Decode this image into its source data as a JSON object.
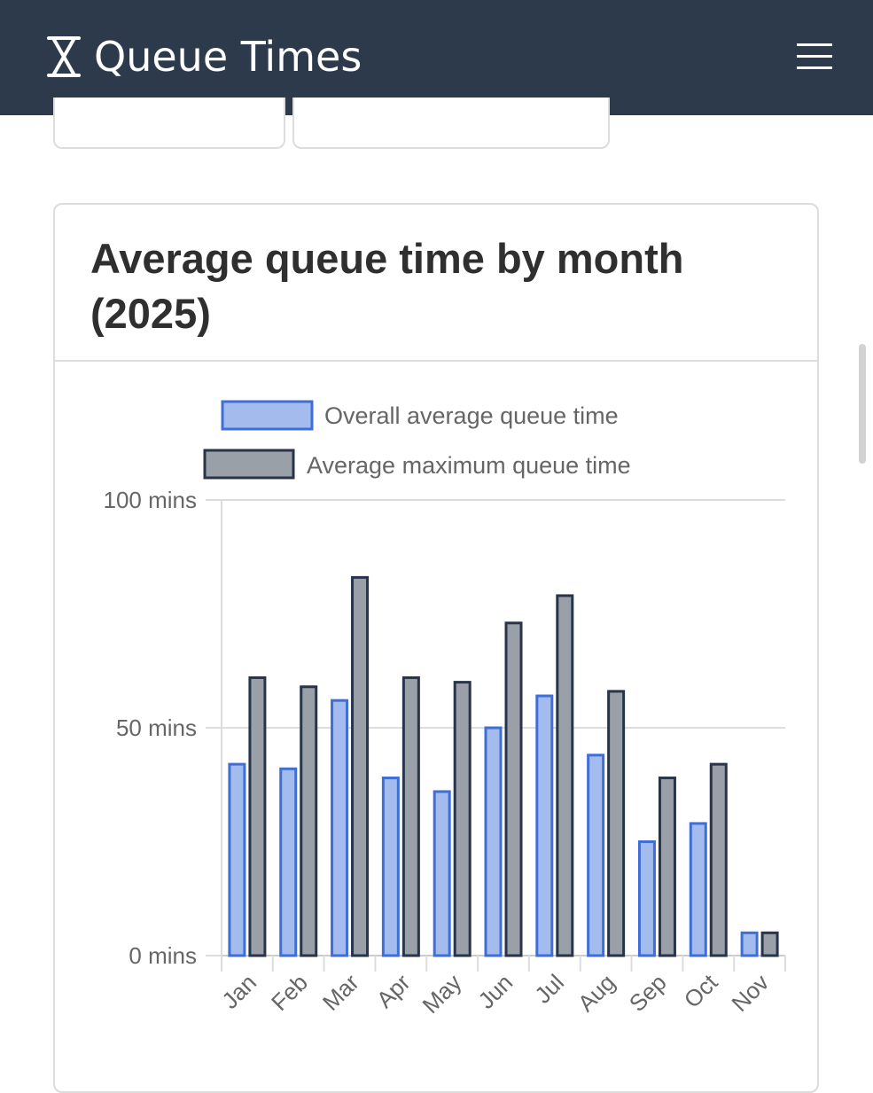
{
  "header": {
    "title": "Queue Times",
    "brand_icon": "hourglass-icon",
    "menu_icon": "hamburger-menu-icon"
  },
  "colors": {
    "header_bg": "#2d3a4b",
    "series_overall_fill": "#a3bbed",
    "series_overall_border": "#3f6fd6",
    "series_max_fill": "#9aa0a8",
    "series_max_border": "#27344a"
  },
  "chart_card": {
    "title": "Average queue time by month (2025)"
  },
  "chart_data": {
    "type": "bar",
    "title": "Average queue time by month (2025)",
    "categories": [
      "Jan",
      "Feb",
      "Mar",
      "Apr",
      "May",
      "Jun",
      "Jul",
      "Aug",
      "Sep",
      "Oct",
      "Nov"
    ],
    "series": [
      {
        "name": "Overall average queue time",
        "values": [
          42,
          41,
          56,
          39,
          36,
          50,
          57,
          44,
          25,
          29,
          5
        ]
      },
      {
        "name": "Average maximum queue time",
        "values": [
          61,
          59,
          83,
          61,
          60,
          73,
          79,
          58,
          39,
          42,
          5
        ]
      }
    ],
    "yticks": [
      "0 mins",
      "50 mins",
      "100 mins"
    ],
    "ytick_values": [
      0,
      50,
      100
    ],
    "ylim": [
      0,
      100
    ],
    "xlabel": "",
    "ylabel": "",
    "grid": true,
    "legend": "top"
  }
}
